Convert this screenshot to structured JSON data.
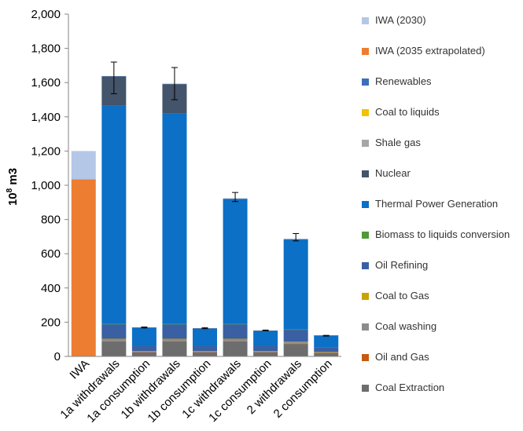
{
  "chart_data": {
    "type": "bar",
    "stacked": true,
    "ylabel_base": "10",
    "ylabel_exp": "8",
    "ylabel_unit": " m3",
    "ylim": [
      0,
      2000
    ],
    "yticks": [
      0,
      200,
      400,
      600,
      800,
      1000,
      1200,
      1400,
      1600,
      1800,
      2000
    ],
    "ytick_labels": [
      "0",
      "200",
      "400",
      "600",
      "800",
      "1,000",
      "1,200",
      "1,400",
      "1,600",
      "1,800",
      "2,000"
    ],
    "categories": [
      "IWA",
      "1a withdrawals",
      "1a consumption",
      "1b withdrawals",
      "1b consumption",
      "1c withdrawals",
      "1c consumption",
      "2 withdrawals",
      "2 consumption"
    ],
    "series": [
      {
        "name": "Coal Extraction",
        "color": "#6d6d6d",
        "values": [
          0,
          88,
          25,
          88,
          25,
          88,
          25,
          73,
          20
        ]
      },
      {
        "name": "Oil and Gas",
        "color": "#c55a11",
        "values": [
          0,
          2,
          1,
          2,
          1,
          2,
          1,
          2,
          1
        ]
      },
      {
        "name": "Coal washing",
        "color": "#8c8c8c",
        "values": [
          0,
          12,
          5,
          12,
          5,
          12,
          5,
          10,
          4
        ]
      },
      {
        "name": "Coal to Gas",
        "color": "#c9a400",
        "values": [
          0,
          1,
          1,
          1,
          1,
          1,
          1,
          1,
          1
        ]
      },
      {
        "name": "Oil Refining",
        "color": "#3a5fa3",
        "values": [
          0,
          85,
          30,
          85,
          30,
          85,
          30,
          70,
          25
        ]
      },
      {
        "name": "Biomass to liquids conversion",
        "color": "#4f9a36",
        "values": [
          0,
          1,
          0,
          1,
          0,
          1,
          0,
          1,
          0
        ]
      },
      {
        "name": "Thermal Power Generation",
        "color": "#0b70c6",
        "values": [
          0,
          1275,
          105,
          1230,
          100,
          730,
          87,
          525,
          70
        ]
      },
      {
        "name": "Nuclear",
        "color": "#44546a",
        "values": [
          0,
          172,
          2,
          172,
          2,
          2,
          1,
          2,
          1
        ]
      },
      {
        "name": "Shale gas",
        "color": "#a6a6a6",
        "values": [
          0,
          0,
          0,
          0,
          0,
          0,
          0,
          0,
          0
        ]
      },
      {
        "name": "Coal to liquids",
        "color": "#f2c200",
        "values": [
          0,
          0,
          0,
          0,
          0,
          0,
          0,
          0,
          0
        ]
      },
      {
        "name": "Renewables",
        "color": "#3b6fba",
        "values": [
          0,
          2,
          1,
          2,
          1,
          2,
          1,
          2,
          1
        ]
      },
      {
        "name": "IWA (2035 extrapolated)",
        "color": "#ed7d31",
        "values": [
          1035,
          0,
          0,
          0,
          0,
          0,
          0,
          0,
          0
        ]
      },
      {
        "name": "IWA (2030)",
        "color": "#b4c7e7",
        "values": [
          165,
          0,
          0,
          0,
          0,
          0,
          0,
          0,
          0
        ]
      }
    ],
    "error_bars": [
      {
        "category": "1a withdrawals",
        "low": 1535,
        "high": 1720
      },
      {
        "category": "1a consumption",
        "low": 166,
        "high": 172
      },
      {
        "category": "1b withdrawals",
        "low": 1500,
        "high": 1688
      },
      {
        "category": "1b consumption",
        "low": 162,
        "high": 168
      },
      {
        "category": "1c withdrawals",
        "low": 905,
        "high": 958
      },
      {
        "category": "1c consumption",
        "low": 150,
        "high": 154
      },
      {
        "category": "2 withdrawals",
        "low": 675,
        "high": 718
      },
      {
        "category": "2 consumption",
        "low": 119,
        "high": 123
      }
    ],
    "legend": [
      "IWA (2030)",
      "IWA (2035 extrapolated)",
      "Renewables",
      "Coal to liquids",
      "Shale gas",
      "Nuclear",
      "Thermal Power Generation",
      "Biomass to liquids conversion",
      "Oil Refining",
      "Coal to Gas",
      "Coal washing",
      "Oil and Gas",
      "Coal Extraction"
    ],
    "legend_placement": "right",
    "grid": false
  }
}
